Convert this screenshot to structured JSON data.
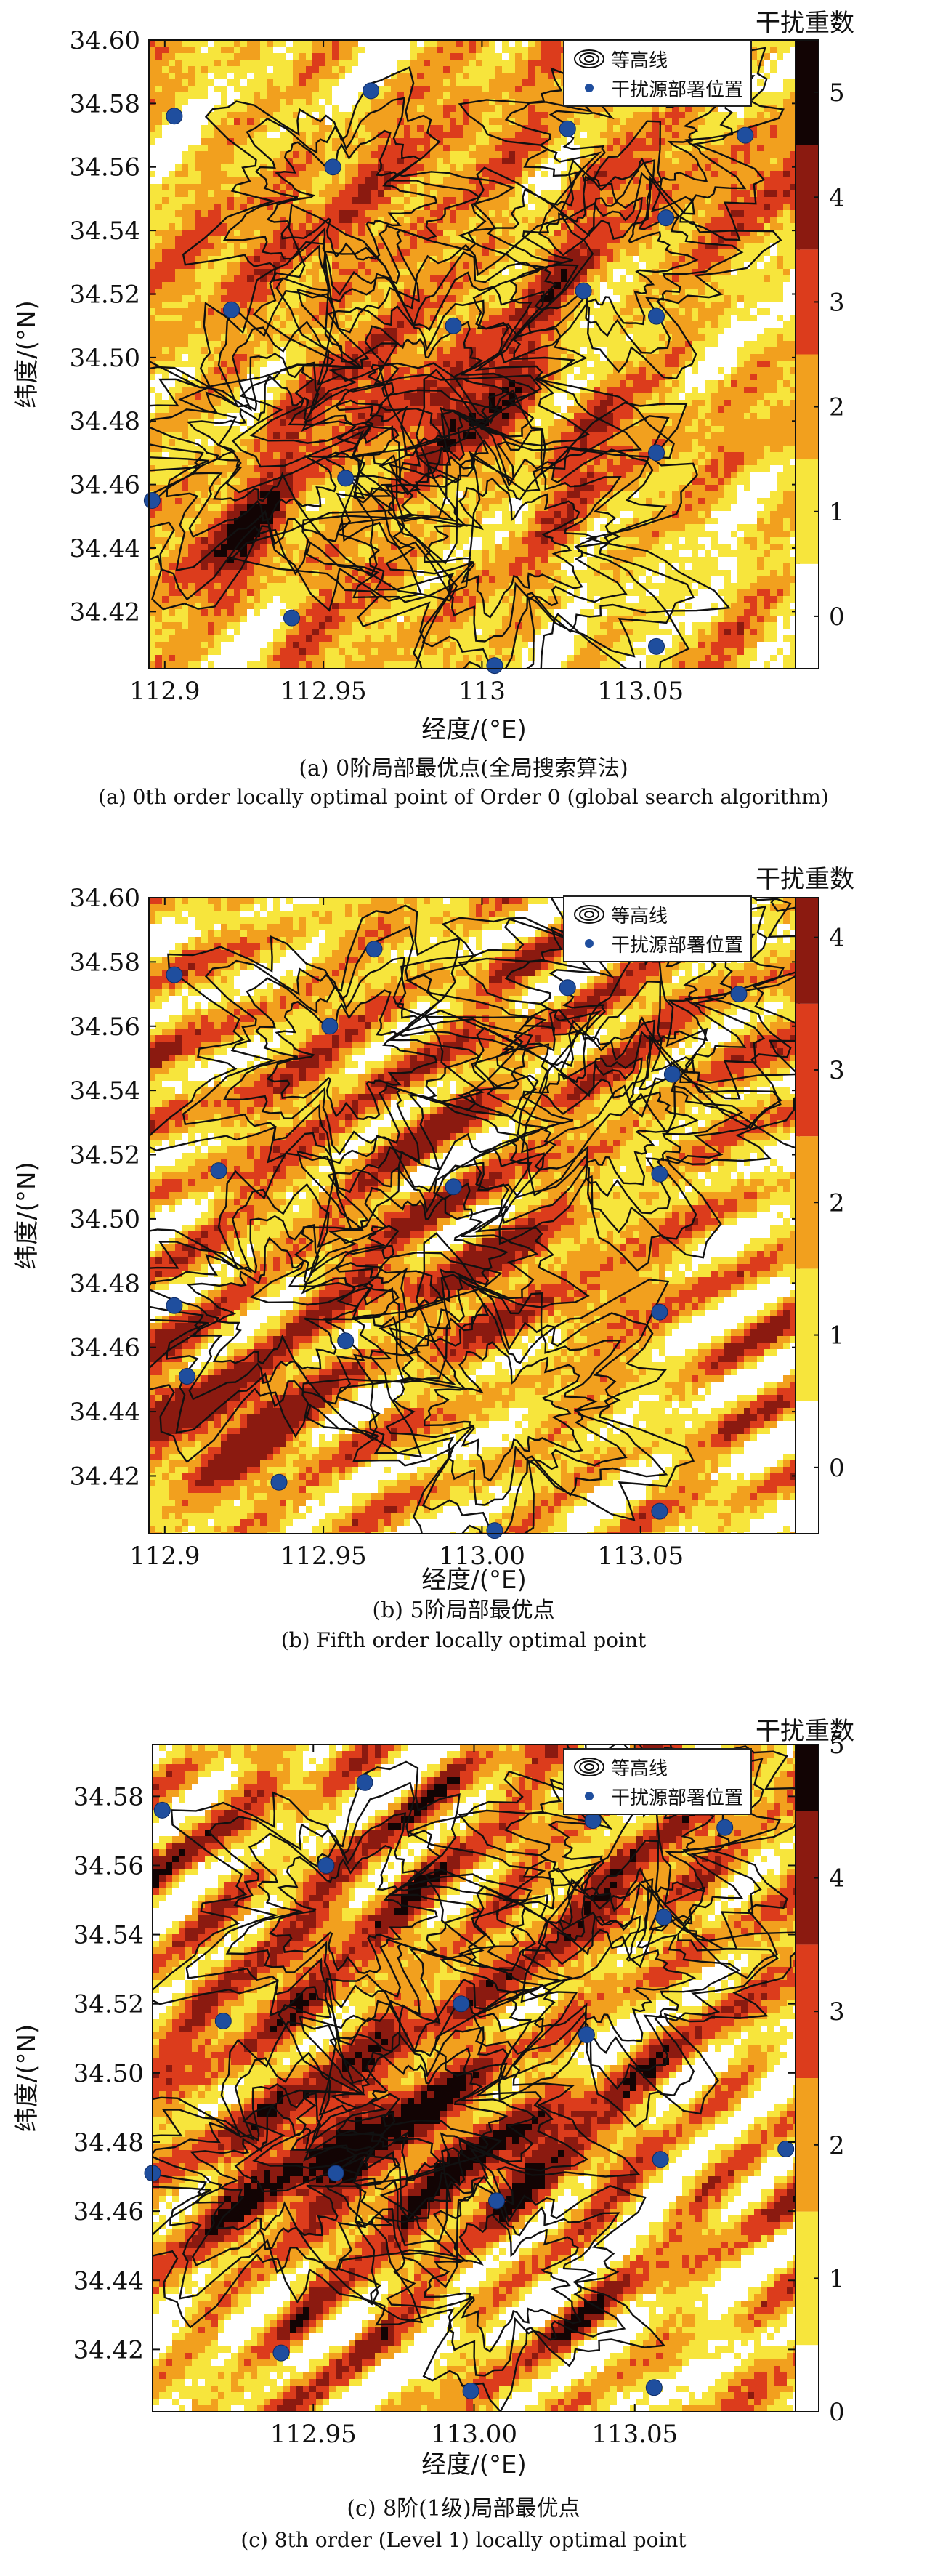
{
  "chart_data": [
    {
      "type": "heatmap",
      "panel_id": "a",
      "colorbar_title": "干扰重数",
      "colorbar_ticks": [
        0,
        1,
        2,
        3,
        4,
        5
      ],
      "colorbar_range": [
        -0.5,
        5.5
      ],
      "xlabel": "经度/(°E)",
      "ylabel": "纬度/(°N)",
      "xticks": [
        "112.9",
        "112.95",
        "113",
        "113.05"
      ],
      "xtick_values": [
        112.9,
        112.95,
        113.0,
        113.05
      ],
      "yticks": [
        "34.42",
        "34.44",
        "34.46",
        "34.48",
        "34.50",
        "34.52",
        "34.54",
        "34.56",
        "34.58",
        "34.60"
      ],
      "ytick_values": [
        34.42,
        34.44,
        34.46,
        34.48,
        34.5,
        34.52,
        34.54,
        34.56,
        34.58,
        34.6
      ],
      "xlim": [
        112.895,
        113.1
      ],
      "ylim": [
        34.402,
        34.6
      ],
      "legend": [
        "等高线",
        "干扰源部署位置"
      ],
      "legend_position": "top-right",
      "caption_cn": "(a) 0阶局部最优点(全局搜索算法)",
      "caption_en": "(a) 0th order  locally optimal point of Order 0 (global search algorithm)",
      "sources": [
        [
          112.903,
          34.576
        ],
        [
          112.965,
          34.584
        ],
        [
          113.027,
          34.572
        ],
        [
          113.083,
          34.57
        ],
        [
          112.953,
          34.56
        ],
        [
          113.058,
          34.544
        ],
        [
          112.921,
          34.515
        ],
        [
          112.991,
          34.51
        ],
        [
          113.032,
          34.521
        ],
        [
          113.055,
          34.513
        ],
        [
          113.055,
          34.47
        ],
        [
          112.957,
          34.462
        ],
        [
          112.896,
          34.455
        ],
        [
          112.94,
          34.418
        ],
        [
          113.004,
          34.403
        ],
        [
          113.055,
          34.409
        ]
      ],
      "hotspots": [
        [
          113.0,
          34.482,
          0.05,
          0.02,
          3.4
        ],
        [
          112.93,
          34.44,
          0.035,
          0.02,
          3.2
        ],
        [
          112.96,
          34.53,
          0.06,
          0.04,
          2.4
        ],
        [
          113.05,
          34.56,
          0.05,
          0.03,
          2.2
        ]
      ]
    },
    {
      "type": "heatmap",
      "panel_id": "b",
      "colorbar_title": "干扰重数",
      "colorbar_ticks": [
        0,
        1,
        2,
        3,
        4
      ],
      "colorbar_range": [
        -0.5,
        4.3
      ],
      "xlabel": "经度/(°E)",
      "ylabel": "纬度/(°N)",
      "xticks": [
        "112.9",
        "112.95",
        "113.00",
        "113.05"
      ],
      "xtick_values": [
        112.9,
        112.95,
        113.0,
        113.05
      ],
      "yticks": [
        "34.42",
        "34.44",
        "34.46",
        "34.48",
        "34.50",
        "34.52",
        "34.54",
        "34.56",
        "34.58",
        "34.60"
      ],
      "ytick_values": [
        34.42,
        34.44,
        34.46,
        34.48,
        34.5,
        34.52,
        34.54,
        34.56,
        34.58,
        34.6
      ],
      "xlim": [
        112.895,
        113.1
      ],
      "ylim": [
        34.402,
        34.6
      ],
      "legend": [
        "等高线",
        "干扰源部署位置"
      ],
      "legend_position": "top-right",
      "caption_cn": "(b) 5阶局部最优点",
      "caption_en": "(b) Fifth order  locally optimal point",
      "sources": [
        [
          112.903,
          34.576
        ],
        [
          112.966,
          34.584
        ],
        [
          113.027,
          34.572
        ],
        [
          113.081,
          34.57
        ],
        [
          112.952,
          34.56
        ],
        [
          113.06,
          34.545
        ],
        [
          112.917,
          34.515
        ],
        [
          112.991,
          34.51
        ],
        [
          113.056,
          34.514
        ],
        [
          113.056,
          34.471
        ],
        [
          112.903,
          34.473
        ],
        [
          112.907,
          34.451
        ],
        [
          112.957,
          34.462
        ],
        [
          112.936,
          34.418
        ],
        [
          113.004,
          34.403
        ],
        [
          113.056,
          34.409
        ]
      ],
      "hotspots": [
        [
          112.915,
          34.44,
          0.035,
          0.02,
          4.3
        ],
        [
          113.0,
          34.482,
          0.05,
          0.02,
          2.8
        ],
        [
          112.96,
          34.53,
          0.06,
          0.04,
          2.2
        ],
        [
          113.05,
          34.56,
          0.05,
          0.03,
          2.0
        ]
      ]
    },
    {
      "type": "heatmap",
      "panel_id": "c",
      "colorbar_title": "干扰重数",
      "colorbar_ticks": [
        0,
        1,
        2,
        3,
        4,
        5
      ],
      "colorbar_range": [
        0,
        5
      ],
      "xlabel": "经度/(°E)",
      "ylabel": "纬度/(°N)",
      "xticks": [
        "112.95",
        "113.00",
        "113.05"
      ],
      "xtick_values": [
        112.95,
        113.0,
        113.05
      ],
      "yticks": [
        "34.42",
        "34.44",
        "34.46",
        "34.48",
        "34.50",
        "34.52",
        "34.54",
        "34.56",
        "34.58"
      ],
      "ytick_values": [
        34.42,
        34.44,
        34.46,
        34.48,
        34.5,
        34.52,
        34.54,
        34.56,
        34.58
      ],
      "xlim": [
        112.9,
        113.1
      ],
      "ylim": [
        34.402,
        34.595
      ],
      "legend": [
        "等高线",
        "干扰源部署位置"
      ],
      "legend_position": "top-right",
      "caption_cn": "(c) 8阶(1级)局部最优点",
      "caption_en": "(c) 8th order (Level 1)   locally optimal point",
      "sources": [
        [
          112.903,
          34.576
        ],
        [
          112.966,
          34.584
        ],
        [
          113.037,
          34.573
        ],
        [
          113.078,
          34.571
        ],
        [
          112.954,
          34.56
        ],
        [
          113.059,
          34.545
        ],
        [
          112.922,
          34.515
        ],
        [
          112.996,
          34.52
        ],
        [
          113.035,
          34.511
        ],
        [
          113.058,
          34.475
        ],
        [
          112.9,
          34.471
        ],
        [
          112.957,
          34.471
        ],
        [
          113.007,
          34.463
        ],
        [
          113.097,
          34.478
        ],
        [
          112.94,
          34.419
        ],
        [
          112.999,
          34.408
        ],
        [
          113.056,
          34.409
        ]
      ],
      "hotspots": [
        [
          113.0,
          34.48,
          0.05,
          0.02,
          3.6
        ],
        [
          112.945,
          34.47,
          0.04,
          0.03,
          3.0
        ],
        [
          112.96,
          34.53,
          0.06,
          0.04,
          2.5
        ],
        [
          113.05,
          34.56,
          0.05,
          0.03,
          2.4
        ]
      ]
    }
  ],
  "colors": {
    "zero": "#ffffff",
    "one": "#f7e53c",
    "two": "#f2a01e",
    "three": "#dc3c1c",
    "four": "#8b1a10",
    "five": "#120404",
    "source": "#1f4e9e",
    "contour": "#111111"
  }
}
